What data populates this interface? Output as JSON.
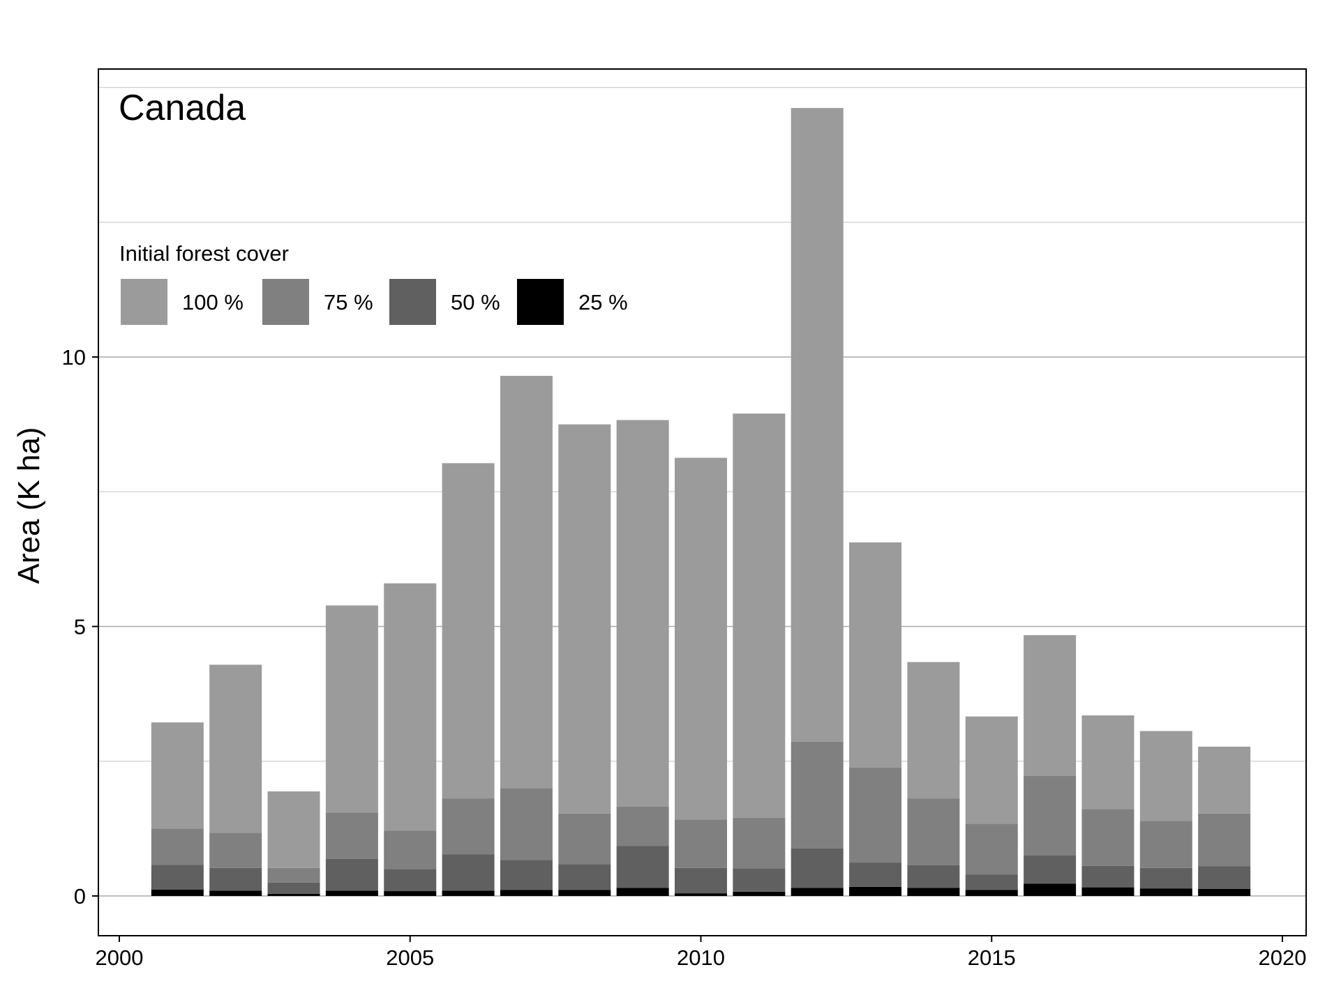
{
  "chart_data": {
    "type": "bar",
    "stacked": true,
    "title": "Canada",
    "ylabel": "Area (K ha)",
    "xlabel": "",
    "xlim": [
      2000,
      2020
    ],
    "ylim": [
      -0.7,
      15.35
    ],
    "x_ticks": [
      2000,
      2005,
      2010,
      2015,
      2020
    ],
    "y_ticks": [
      0,
      5,
      10
    ],
    "minor_gridlines": [
      2.5,
      7.5,
      12.5,
      15
    ],
    "grid": true,
    "legend": {
      "title": "Initial forest cover",
      "placement": "top-left"
    },
    "x": [
      2001,
      2002,
      2003,
      2004,
      2005,
      2006,
      2007,
      2008,
      2009,
      2010,
      2011,
      2012,
      2013,
      2014,
      2015,
      2016,
      2017,
      2018,
      2019
    ],
    "series": [
      {
        "name": "25 %",
        "color": "#000000",
        "values": [
          0.12,
          0.1,
          0.04,
          0.1,
          0.09,
          0.1,
          0.11,
          0.11,
          0.15,
          0.05,
          0.08,
          0.15,
          0.17,
          0.15,
          0.11,
          0.23,
          0.16,
          0.14,
          0.13
        ]
      },
      {
        "name": "50 %",
        "color": "#606060",
        "values": [
          0.46,
          0.42,
          0.21,
          0.59,
          0.41,
          0.67,
          0.56,
          0.48,
          0.78,
          0.47,
          0.43,
          0.73,
          0.45,
          0.42,
          0.29,
          0.52,
          0.4,
          0.38,
          0.42
        ]
      },
      {
        "name": "75 %",
        "color": "#808080",
        "values": [
          0.67,
          0.65,
          0.27,
          0.86,
          0.71,
          1.04,
          1.33,
          0.94,
          0.73,
          0.9,
          0.94,
          1.98,
          1.76,
          1.24,
          0.94,
          1.48,
          1.05,
          0.87,
          0.98
        ]
      },
      {
        "name": "100 %",
        "color": "#9b9b9b",
        "values": [
          1.97,
          3.12,
          1.42,
          3.84,
          4.59,
          6.22,
          7.65,
          7.22,
          7.17,
          6.71,
          7.5,
          11.76,
          4.18,
          2.53,
          1.99,
          2.61,
          1.74,
          1.67,
          1.24
        ]
      }
    ]
  }
}
